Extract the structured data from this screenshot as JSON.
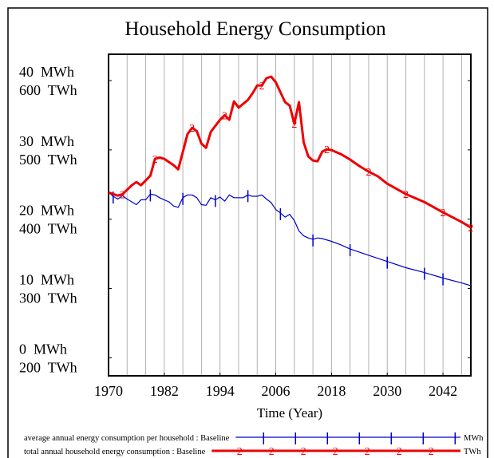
{
  "chart_data": {
    "type": "line",
    "title": "Household Energy Consumption",
    "x_label": "Time (Year)",
    "xlim": [
      1970,
      2048
    ],
    "xticks": [
      1970,
      1982,
      1994,
      2006,
      2018,
      2030,
      2042
    ],
    "xgrid": [
      1974,
      1978,
      1982,
      1986,
      1990,
      1994,
      1998,
      2002,
      2006,
      2010,
      2014,
      2018,
      2022,
      2026,
      2030,
      2034,
      2038,
      2042,
      2046
    ],
    "ylim": [
      -2.6,
      43.8
    ],
    "yticks": [
      {
        "value": 0,
        "label": "0  MWh"
      },
      {
        "value": 10,
        "label": "10  MWh"
      },
      {
        "value": 20,
        "label": "20  MWh"
      },
      {
        "value": 30,
        "label": "30  MWh"
      },
      {
        "value": 40,
        "label": "40  MWh"
      }
    ],
    "y2lim": [
      174,
      638
    ],
    "y2ticks": [
      {
        "value": 200,
        "label": "200  TWh"
      },
      {
        "value": 300,
        "label": "300  TWh"
      },
      {
        "value": 400,
        "label": "400  TWh"
      },
      {
        "value": 500,
        "label": "500  TWh"
      },
      {
        "value": 600,
        "label": "600  TWh"
      }
    ],
    "series": [
      {
        "name": "average annual energy consumption per household : Baseline",
        "unit": "MWh",
        "color": "#0000cc",
        "axis": "y",
        "x": [
          1970,
          1971,
          1972,
          1973,
          1974,
          1975,
          1976,
          1977,
          1978,
          1979,
          1980,
          1981,
          1982,
          1983,
          1984,
          1985,
          1986,
          1987,
          1988,
          1989,
          1990,
          1991,
          1992,
          1993,
          1994,
          1995,
          1996,
          1997,
          1998,
          1999,
          2000,
          2001,
          2002,
          2003,
          2004,
          2005,
          2006,
          2007,
          2008,
          2009,
          2010,
          2011,
          2012,
          2013,
          2014,
          2015,
          2016,
          2018,
          2020,
          2022,
          2026,
          2030,
          2034,
          2038,
          2042,
          2046,
          2048
        ],
        "values": [
          23.9,
          23.3,
          22.9,
          23.4,
          22.9,
          22.5,
          22.1,
          22.8,
          22.8,
          23.6,
          23.5,
          23.1,
          22.8,
          22.5,
          21.9,
          21.7,
          23.1,
          23.5,
          23.5,
          23.1,
          22.1,
          22.0,
          23.1,
          22.8,
          23.2,
          22.6,
          23.5,
          23.1,
          23.1,
          23.1,
          23.5,
          23.3,
          23.3,
          23.5,
          22.9,
          22.4,
          21.4,
          20.9,
          20.3,
          20.7,
          19.8,
          18.3,
          17.6,
          17.3,
          17.1,
          17.3,
          17.2,
          16.8,
          16.3,
          15.7,
          14.8,
          13.9,
          13.0,
          12.3,
          11.5,
          10.8,
          10.4
        ]
      },
      {
        "name": "total annual household energy consumption : Baseline",
        "unit": "TWh",
        "color": "#ee0000",
        "axis": "y2",
        "x": [
          1970,
          1972,
          1973,
          1975,
          1976,
          1977,
          1979,
          1980,
          1981,
          1982,
          1984,
          1985,
          1986,
          1987,
          1988,
          1989,
          1990,
          1991,
          1992,
          1994,
          1995,
          1996,
          1997,
          1998,
          2000,
          2001,
          2002,
          2003,
          2004,
          2005,
          2006,
          2008,
          2009,
          2010,
          2011,
          2012,
          2013,
          2014,
          2015,
          2016,
          2017,
          2018,
          2020,
          2022,
          2024,
          2026,
          2028,
          2030,
          2034,
          2038,
          2042,
          2046,
          2048
        ],
        "values": [
          438.6,
          434,
          436,
          449,
          453.6,
          449,
          462.8,
          487,
          489,
          487,
          478,
          472,
          497,
          522.8,
          532,
          527,
          509,
          503,
          526,
          543.5,
          550,
          543.5,
          570,
          561,
          572,
          581.6,
          593,
          593,
          603.5,
          605.8,
          597.7,
          568.9,
          564,
          537.7,
          568.9,
          511,
          490.5,
          484.7,
          483.6,
          497.4,
          500.9,
          499.7,
          494,
          486,
          476.7,
          468.6,
          461.7,
          451.3,
          436.3,
          424.8,
          409.8,
          396,
          387.9
        ]
      }
    ]
  }
}
